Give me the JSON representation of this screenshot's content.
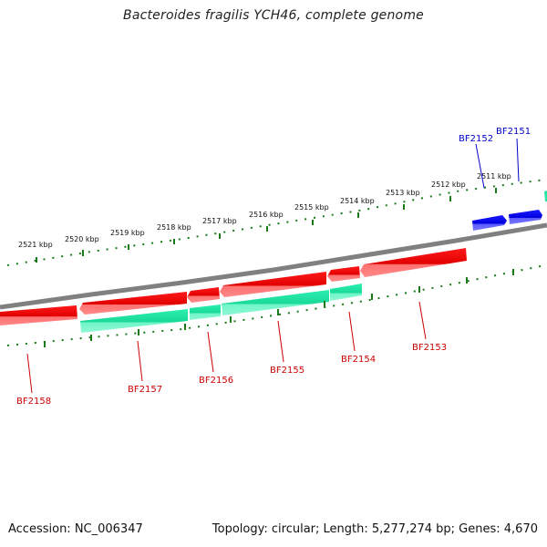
{
  "title": "Bacteroides fragilis YCH46, complete genome",
  "footer": {
    "accession": "Accession: NC_006347",
    "summary": "Topology: circular; Length: 5,277,274 bp; Genes: 4,670"
  },
  "colors": {
    "forward_strand": "#0000ee",
    "reverse_strand": "#e60000",
    "rna_track": "#22e8a4",
    "backbone": "#808080",
    "tick": "#1a7a1a",
    "label_red": "#cc0000",
    "label_blue": "#0000cc"
  },
  "scale": {
    "unit": "kbp",
    "labels": [
      "2511 kbp",
      "2512 kbp",
      "2513 kbp",
      "2514 kbp",
      "2515 kbp",
      "2516 kbp",
      "2517 kbp",
      "2518 kbp",
      "2519 kbp",
      "2520 kbp",
      "2521 kbp"
    ]
  },
  "genes": [
    {
      "name": "BF2151",
      "strand": "forward"
    },
    {
      "name": "BF2152",
      "strand": "forward"
    },
    {
      "name": "BF2153",
      "strand": "reverse"
    },
    {
      "name": "BF2154",
      "strand": "reverse"
    },
    {
      "name": "BF2155",
      "strand": "reverse"
    },
    {
      "name": "BF2156",
      "strand": "reverse"
    },
    {
      "name": "BF2157",
      "strand": "reverse"
    },
    {
      "name": "BF2158",
      "strand": "reverse"
    }
  ]
}
